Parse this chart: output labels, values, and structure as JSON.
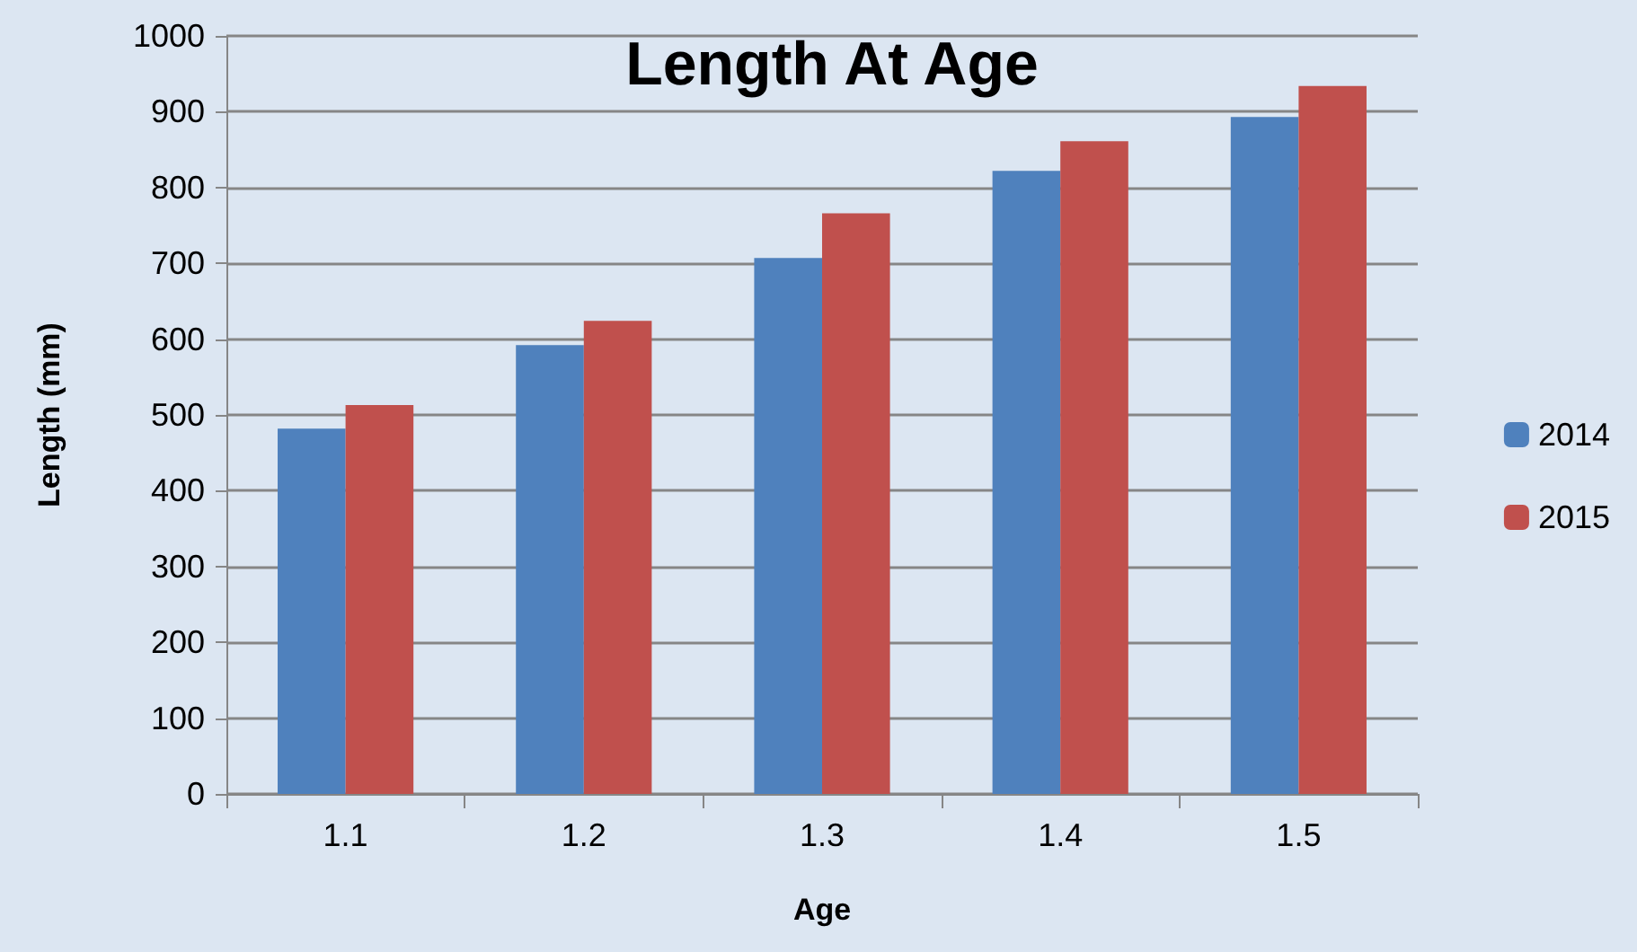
{
  "chart_data": {
    "type": "bar",
    "title": "Length At Age",
    "xlabel": "Age",
    "ylabel": "Length (mm)",
    "categories": [
      "1.1",
      "1.2",
      "1.3",
      "1.4",
      "1.5"
    ],
    "series": [
      {
        "name": "2014",
        "color": "#4f81bd",
        "values": [
          482,
          592,
          707,
          822,
          893
        ]
      },
      {
        "name": "2015",
        "color": "#c0504d",
        "values": [
          513,
          624,
          766,
          861,
          934
        ]
      }
    ],
    "ylim": [
      0,
      1000
    ],
    "yticks": [
      0,
      100,
      200,
      300,
      400,
      500,
      600,
      700,
      800,
      900,
      1000
    ],
    "grid": "y",
    "legend": "right"
  }
}
